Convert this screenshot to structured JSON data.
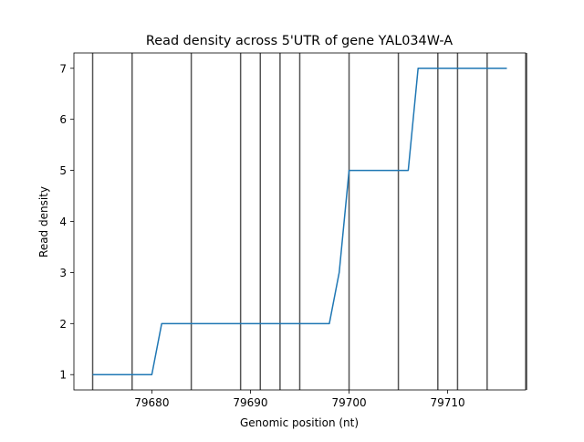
{
  "chart_data": {
    "type": "line",
    "title": "Read density across 5'UTR of gene YAL034W-A",
    "xlabel": "Genomic position (nt)",
    "ylabel": "Read density",
    "xlim": [
      79672.1,
      79717.9
    ],
    "ylim": [
      0.7,
      7.3
    ],
    "xticks": [
      79680,
      79690,
      79700,
      79710
    ],
    "yticks": [
      1,
      2,
      3,
      4,
      5,
      6,
      7
    ],
    "grid": false,
    "series": [
      {
        "color": "#1f77b4",
        "x": [
          79674,
          79675,
          79676,
          79677,
          79678,
          79679,
          79680,
          79681,
          79682,
          79683,
          79684,
          79685,
          79686,
          79687,
          79688,
          79689,
          79690,
          79691,
          79692,
          79693,
          79694,
          79695,
          79696,
          79697,
          79698,
          79699,
          79700,
          79701,
          79702,
          79703,
          79704,
          79705,
          79706,
          79707,
          79708,
          79709,
          79710,
          79711,
          79712,
          79713,
          79714,
          79715,
          79716
        ],
        "y": [
          1,
          1,
          1,
          1,
          1,
          1,
          1,
          2,
          2,
          2,
          2,
          2,
          2,
          2,
          2,
          2,
          2,
          2,
          2,
          2,
          2,
          2,
          2,
          2,
          2,
          3,
          5,
          5,
          5,
          5,
          5,
          5,
          5,
          7,
          7,
          7,
          7,
          7,
          7,
          7,
          7,
          7,
          7
        ]
      }
    ],
    "vertical_lines": {
      "color": "#555555",
      "x": [
        79674,
        79678,
        79684,
        79689,
        79691,
        79693,
        79695,
        79700,
        79705,
        79709,
        79711,
        79714,
        79718
      ]
    }
  }
}
